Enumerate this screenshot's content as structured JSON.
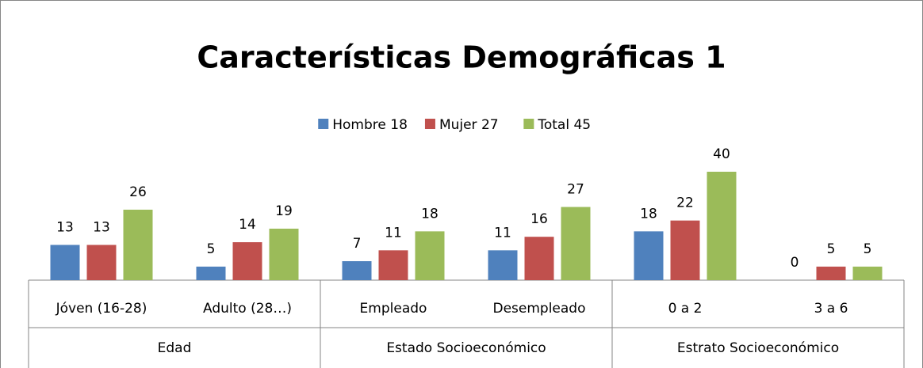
{
  "chart_data": {
    "type": "bar",
    "title": "Características Demográficas 1",
    "groups": [
      {
        "name": "Edad",
        "categories": [
          "Jóven (16-28)",
          "Adulto (28…)"
        ]
      },
      {
        "name": "Estado Socioeconómico",
        "categories": [
          "Empleado",
          "Desempleado"
        ]
      },
      {
        "name": "Estrato Socioeconómico",
        "categories": [
          "0 a 2",
          "3 a 6"
        ]
      }
    ],
    "series": [
      {
        "name": "Hombre 18",
        "color": "#4f81bd",
        "values": [
          13,
          5,
          7,
          11,
          18,
          0
        ]
      },
      {
        "name": "Mujer 27",
        "color": "#c0504d",
        "values": [
          13,
          14,
          11,
          16,
          22,
          5
        ]
      },
      {
        "name": "Total 45",
        "color": "#9bbb59",
        "values": [
          26,
          19,
          18,
          27,
          40,
          5
        ]
      }
    ],
    "legend": "top"
  }
}
